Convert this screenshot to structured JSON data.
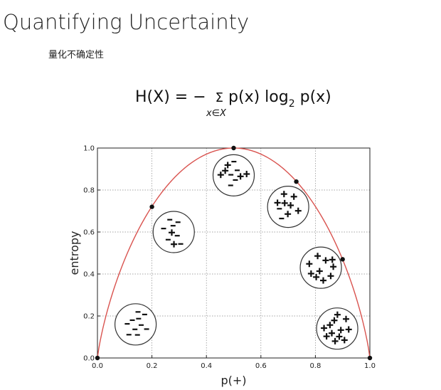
{
  "slide": {
    "title": "Quantifying Uncertainty",
    "subtitle": "量化不确定性",
    "formula": {
      "lhs": "H(X) = −",
      "sigma": "Σ",
      "px": "p(x) log",
      "base": "2",
      "tail": " p(x)",
      "index": "x∈X"
    }
  },
  "chart_data": {
    "type": "line",
    "xlabel": "p(+)",
    "ylabel": "entropy",
    "xlim": [
      0.0,
      1.0
    ],
    "ylim": [
      0.0,
      1.0
    ],
    "xticks": [
      "0.0",
      "0.2",
      "0.4",
      "0.6",
      "0.8",
      "1.0"
    ],
    "yticks": [
      "0.0",
      "0.2",
      "0.4",
      "0.6",
      "0.8",
      "1.0"
    ],
    "grid": true,
    "curve": "binary entropy",
    "curve_color": "#d9534f",
    "points": [
      {
        "x": 0.0,
        "y": 0.0
      },
      {
        "x": 0.2,
        "y": 0.72
      },
      {
        "x": 0.5,
        "y": 1.0
      },
      {
        "x": 0.73,
        "y": 0.84
      },
      {
        "x": 0.9,
        "y": 0.47
      },
      {
        "x": 1.0,
        "y": 0.0
      }
    ],
    "samples": [
      {
        "cx": 0.14,
        "cy": 0.16,
        "plus": 0,
        "minus": 10
      },
      {
        "cx": 0.28,
        "cy": 0.6,
        "plus": 2,
        "minus": 7
      },
      {
        "cx": 0.5,
        "cy": 0.87,
        "plus": 5,
        "minus": 5
      },
      {
        "cx": 0.7,
        "cy": 0.72,
        "plus": 7,
        "minus": 2
      },
      {
        "cx": 0.82,
        "cy": 0.43,
        "plus": 10,
        "minus": 0
      },
      {
        "cx": 0.88,
        "cy": 0.14,
        "plus": 12,
        "minus": 0
      }
    ]
  }
}
